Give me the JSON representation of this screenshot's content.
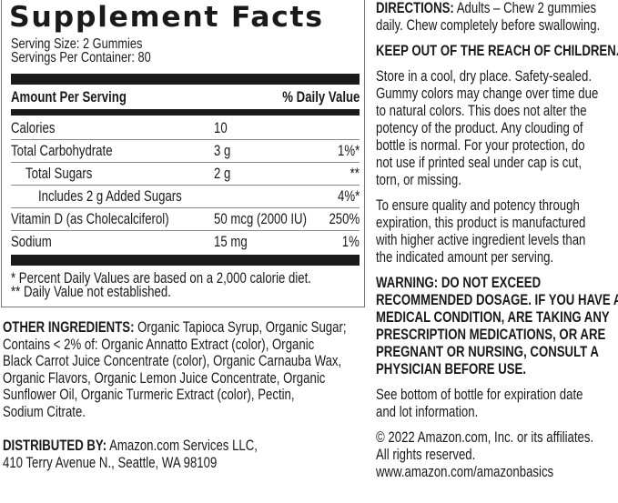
{
  "facts": {
    "title": "Supplement Facts",
    "serving_size": "Serving Size: 2 Gummies",
    "servings_per_container": "Servings Per Container: 80",
    "header_left": "Amount Per Serving",
    "header_right": "% Daily Value",
    "rows": [
      {
        "name": "Calories",
        "amount": "10",
        "dv": "",
        "indent": 0
      },
      {
        "name": "Total Carbohydrate",
        "amount": "3 g",
        "dv": "1%*",
        "indent": 0
      },
      {
        "name": "Total Sugars",
        "amount": "2 g",
        "dv": "**",
        "indent": 1
      },
      {
        "name": "Includes 2 g Added Sugars",
        "amount": "",
        "dv": "4%*",
        "indent": 2
      },
      {
        "name": "Vitamin D (as Cholecalciferol)",
        "amount": "50 mcg (2000 IU)",
        "dv": "250%",
        "indent": 0
      },
      {
        "name": "Sodium",
        "amount": "15 mg",
        "dv": "1%",
        "indent": 0
      }
    ],
    "footnote_1": "* Percent Daily Values are based on a 2,000 calorie diet.",
    "footnote_2": "** Daily Value not established."
  },
  "ingredients": {
    "label": "OTHER INGREDIENTS:",
    "lines": [
      " Organic Tapioca Syrup, Organic Sugar;",
      "Contains < 2% of: Organic Annatto Extract (color), Organic",
      "Black Carrot Juice Concentrate (color), Organic Carnauba Wax,",
      "Organic Flavors, Organic Lemon Juice Concentrate, Organic",
      "Sunflower Oil, Organic Turmeric Extract (color), Pectin,",
      "Sodium Citrate."
    ]
  },
  "distributor": {
    "label": "DISTRIBUTED BY:",
    "lines": [
      " Amazon.com Services LLC,",
      "410 Terry Avenue N., Seattle, WA 98109"
    ]
  },
  "directions": {
    "label": "DIRECTIONS:",
    "lines": [
      " Adults – Chew 2 gummies",
      "daily. Chew completely before swallowing."
    ]
  },
  "keep_out": "KEEP OUT OF THE REACH OF CHILDREN.",
  "storage": [
    "Store in a cool, dry place. Safety-sealed.",
    "Gummy colors may change over time due",
    "to natural colors. This does not alter the",
    "potency of the product. Any clouding of",
    "bottle is normal. For your protection, do",
    "not use if printed seal under cap is cut,",
    "torn, or missing."
  ],
  "potency": [
    "To ensure quality and potency through",
    "expiration, this product is manufactured",
    "with higher active ingredient levels than",
    "the indicated amount per serving."
  ],
  "warning": [
    "WARNING:  DO NOT EXCEED",
    "RECOMMENDED DOSAGE. IF YOU HAVE A",
    "MEDICAL CONDITION, ARE TAKING ANY",
    "PRESCRIPTION MEDICATIONS, OR ARE",
    "PREGNANT OR NURSING, CONSULT A",
    "PHYSICIAN BEFORE USE."
  ],
  "expiration": [
    "See bottom of bottle for expiration date",
    "and lot information."
  ],
  "copyright": [
    "© 2022 Amazon.com, Inc. or its affiliates.",
    "All rights reserved.",
    "www.amazon.com/amazonbasics"
  ]
}
